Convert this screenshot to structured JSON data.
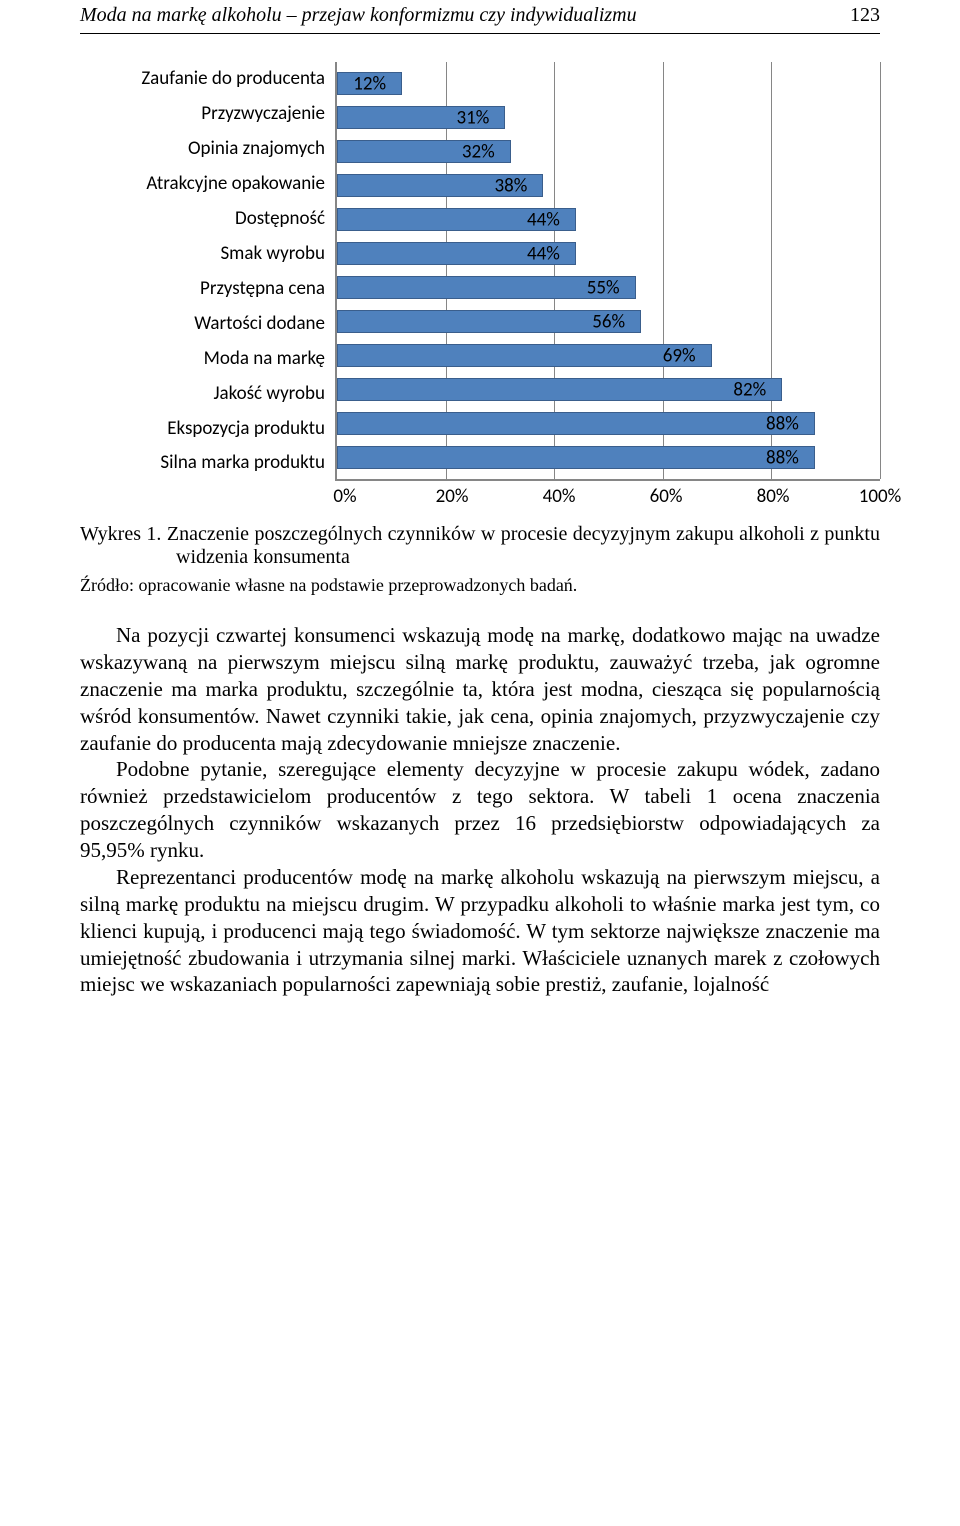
{
  "header": {
    "running_title": "Moda na markę alkoholu – przejaw konformizmu czy indywidualizmu",
    "page_number": "123"
  },
  "chart": {
    "type": "bar-horizontal",
    "bar_color": "#4f81bd",
    "bar_border_color": "#3a5e8c",
    "grid_color": "#868686",
    "background_color": "#ffffff",
    "label_fontsize": 19,
    "value_label_fontsize": 19,
    "xlim": [
      0,
      100
    ],
    "xtick_step": 20,
    "xticks": [
      "0%",
      "20%",
      "40%",
      "60%",
      "80%",
      "100%"
    ],
    "categories": [
      "Zaufanie do producenta",
      "Przyzwyczajenie",
      "Opinia znajomych",
      "Atrakcyjne opakowanie",
      "Dostępność",
      "Smak wyrobu",
      "Przystępna cena",
      "Wartości dodane",
      "Moda na markę",
      "Jakość wyrobu",
      "Ekspozycja produktu",
      "Silna marka produktu"
    ],
    "values": [
      12,
      31,
      32,
      38,
      44,
      44,
      55,
      56,
      69,
      82,
      88,
      88
    ],
    "value_labels": [
      "12%",
      "31%",
      "32%",
      "38%",
      "44%",
      "44%",
      "55%",
      "56%",
      "69%",
      "82%",
      "88%",
      "88%"
    ]
  },
  "caption": {
    "label": "Wykres 1.",
    "text": "Znaczenie poszczególnych czynników w procesie decyzyjnym zakupu alkoholi z punktu widzenia konsumenta"
  },
  "source": "Źródło: opracowanie własne na podstawie przeprowadzonych badań.",
  "paragraphs": [
    "Na pozycji czwartej konsumenci wskazują modę na markę, dodatkowo mając na uwadze wskazywaną na pierwszym miejscu silną markę produktu, zauważyć trzeba, jak ogromne znaczenie ma marka produktu, szczególnie ta, która jest modna, ciesząca się popularnością wśród konsumentów. Nawet czynniki takie, jak cena, opinia znajomych, przyzwyczajenie czy zaufanie do producenta mają zdecydowanie mniejsze znaczenie.",
    "Podobne pytanie, szeregujące elementy decyzyjne w procesie zakupu wódek, zadano również przedstawicielom producentów z tego sektora. W tabeli 1 ocena znaczenia poszczególnych czynników wskazanych przez 16 przedsiębiorstw odpowiadających za 95,95% rynku.",
    "Reprezentanci producentów modę na markę alkoholu wskazują na pierwszym miejscu, a silną markę produktu na miejscu drugim. W przypadku alkoholi to właśnie marka jest tym, co klienci kupują, i producenci mają tego świadomość. W tym sektorze największe znaczenie ma umiejętność zbudowania i utrzymania silnej marki. Właściciele uznanych marek z czołowych miejsc we wskazaniach popularności zapewniają sobie prestiż, zaufanie, lojalność"
  ]
}
